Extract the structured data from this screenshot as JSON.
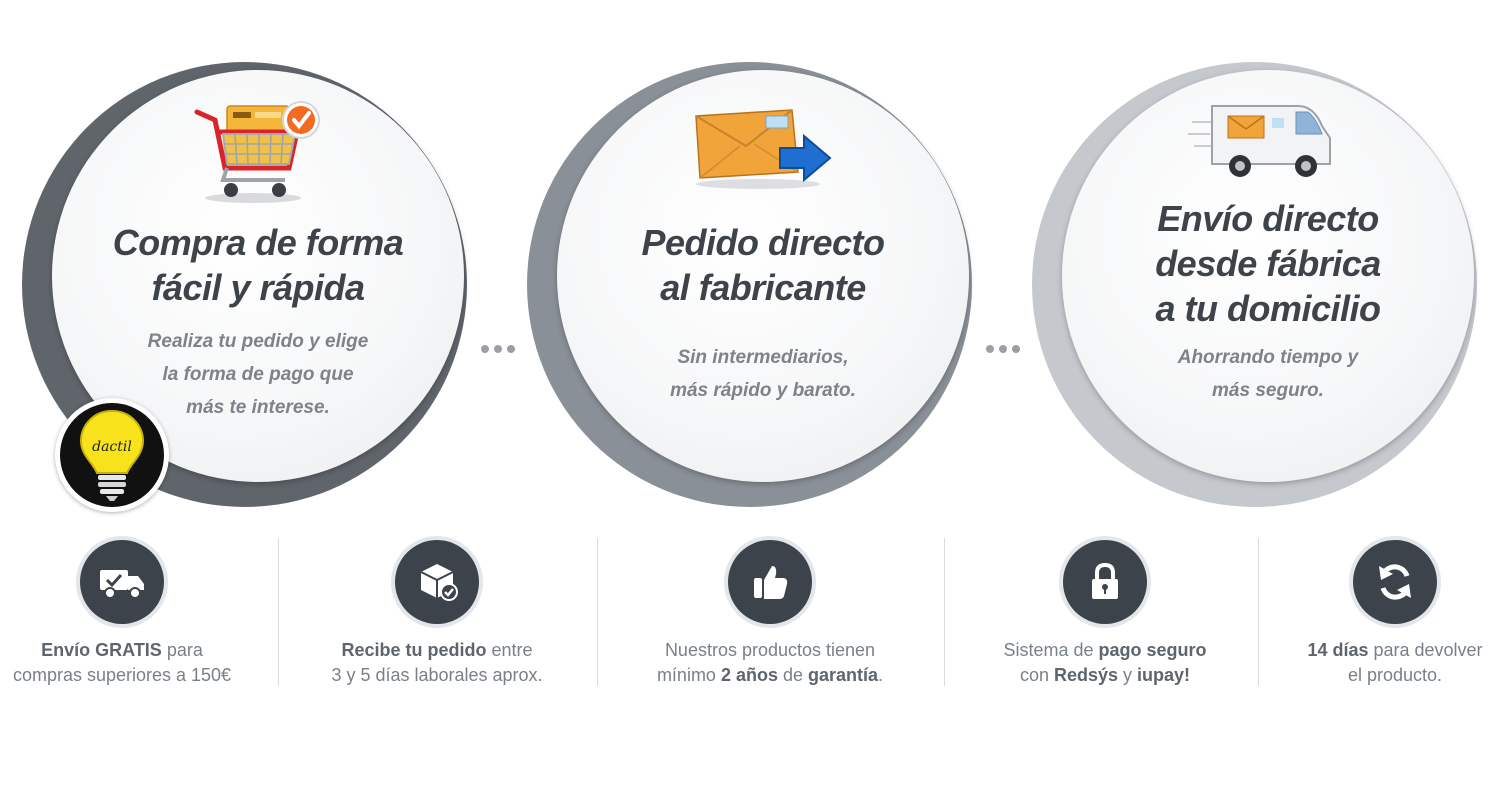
{
  "steps": [
    {
      "title_lines": [
        "Compra de forma",
        "fácil y rápida"
      ],
      "desc_lines": [
        "Realiza tu pedido y elige",
        "la forma de pago que",
        "más te interese."
      ],
      "icon": "shopping-cart-icon",
      "ring_color": "#5f656b"
    },
    {
      "title_lines": [
        "Pedido directo",
        "al fabricante"
      ],
      "desc_lines": [
        "Sin intermediarios,",
        "más rápido y barato."
      ],
      "icon": "package-arrow-icon",
      "ring_color": "#8a9097"
    },
    {
      "title_lines": [
        "Envío directo",
        "desde fábrica",
        "a tu domicilio"
      ],
      "desc_lines": [
        "Ahorrando tiempo y",
        "más seguro."
      ],
      "icon": "delivery-van-icon",
      "ring_color": "#c5c9ce"
    }
  ],
  "badge": {
    "brand": "dactil",
    "icon": "lightbulb-icon"
  },
  "features": [
    {
      "icon": "shipping-truck-icon",
      "line1": [
        {
          "t": "Envío GRATIS",
          "b": true
        },
        {
          "t": " para",
          "b": false
        }
      ],
      "line2": [
        {
          "t": "compras superiores a 150€",
          "b": false
        }
      ]
    },
    {
      "icon": "box-check-icon",
      "line1": [
        {
          "t": "Recibe tu pedido",
          "b": true
        },
        {
          "t": " entre",
          "b": false
        }
      ],
      "line2": [
        {
          "t": "3 y 5 días laborales aprox.",
          "b": false
        }
      ]
    },
    {
      "icon": "thumbs-up-icon",
      "line1": [
        {
          "t": "Nuestros productos tienen",
          "b": false
        }
      ],
      "line2": [
        {
          "t": "mínimo ",
          "b": false
        },
        {
          "t": "2 años",
          "b": true
        },
        {
          "t": " de ",
          "b": false
        },
        {
          "t": "garantía",
          "b": true
        },
        {
          "t": ".",
          "b": false
        }
      ]
    },
    {
      "icon": "padlock-icon",
      "line1": [
        {
          "t": "Sistema de ",
          "b": false
        },
        {
          "t": "pago seguro",
          "b": true
        }
      ],
      "line2": [
        {
          "t": "con ",
          "b": false
        },
        {
          "t": "Redsýs",
          "b": true
        },
        {
          "t": " y ",
          "b": false
        },
        {
          "t": "iupay!",
          "b": true
        }
      ]
    },
    {
      "icon": "refresh-arrows-icon",
      "line1": [
        {
          "t": "14 días",
          "b": true
        },
        {
          "t": " para devolver",
          "b": false
        }
      ],
      "line2": [
        {
          "t": "el producto.",
          "b": false
        }
      ]
    }
  ]
}
